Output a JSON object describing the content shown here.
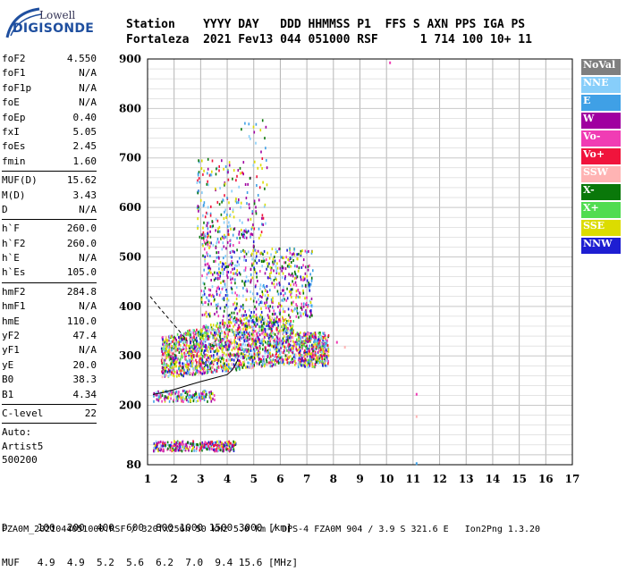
{
  "logo": {
    "line1": "Lowell",
    "line2": "DIGISONDE"
  },
  "header": {
    "labels": "Station    YYYY DAY   DDD HHMMSS P1  FFS S AXN PPS IGA PS",
    "values": "Fortaleza  2021 Fev13 044 051000 RSF      1 714 100 10+ 11"
  },
  "params": {
    "group1": [
      {
        "k": "foF2",
        "v": "4.550"
      },
      {
        "k": "foF1",
        "v": "N/A"
      },
      {
        "k": "foF1p",
        "v": "N/A"
      },
      {
        "k": "foE",
        "v": "N/A"
      },
      {
        "k": "foEp",
        "v": "0.40"
      },
      {
        "k": "fxI",
        "v": "5.05"
      },
      {
        "k": "foEs",
        "v": "2.45"
      },
      {
        "k": "fmin",
        "v": "1.60"
      }
    ],
    "group2": [
      {
        "k": "MUF(D)",
        "v": "15.62"
      },
      {
        "k": "M(D)",
        "v": "3.43"
      },
      {
        "k": "D",
        "v": "N/A"
      }
    ],
    "group3": [
      {
        "k": "h`F",
        "v": "260.0"
      },
      {
        "k": "h`F2",
        "v": "260.0"
      },
      {
        "k": "h`E",
        "v": "N/A"
      },
      {
        "k": "h`Es",
        "v": "105.0"
      }
    ],
    "group4": [
      {
        "k": "hmF2",
        "v": "284.8"
      },
      {
        "k": "hmF1",
        "v": "N/A"
      },
      {
        "k": "hmE",
        "v": "110.0"
      },
      {
        "k": "yF2",
        "v": "47.4"
      },
      {
        "k": "yF1",
        "v": "N/A"
      },
      {
        "k": "yE",
        "v": "20.0"
      },
      {
        "k": "B0",
        "v": "38.3"
      },
      {
        "k": "B1",
        "v": "4.34"
      }
    ],
    "group5": [
      {
        "k": "C-level",
        "v": "22"
      }
    ],
    "auto": [
      "Auto:",
      "Artist5",
      "500200"
    ]
  },
  "legend": [
    {
      "label": "NoVal",
      "color": "#7f7f7f"
    },
    {
      "label": "NNE",
      "color": "#87cefa"
    },
    {
      "label": "E",
      "color": "#3fa0e6"
    },
    {
      "label": "W",
      "color": "#a000a0"
    },
    {
      "label": "Vo-",
      "color": "#f03cb4"
    },
    {
      "label": "Vo+",
      "color": "#f0143c"
    },
    {
      "label": "SSW",
      "color": "#ffb4b4"
    },
    {
      "label": "X-",
      "color": "#0a780a"
    },
    {
      "label": "X+",
      "color": "#50dc50"
    },
    {
      "label": "SSE",
      "color": "#dcdc00"
    },
    {
      "label": "NNW",
      "color": "#1e1ed2"
    }
  ],
  "chart_data": {
    "type": "scatter",
    "xlim": [
      1,
      17
    ],
    "ylim": [
      80,
      900
    ],
    "x_ticks": [
      "1",
      "2",
      "3",
      "4",
      "5",
      "6",
      "7",
      "8",
      "9",
      "10",
      "11",
      "12",
      "13",
      "14",
      "15",
      "16",
      "17"
    ],
    "y_ticks": [
      "80",
      "200",
      "300",
      "400",
      "500",
      "600",
      "700",
      "800",
      "900"
    ],
    "grid": true,
    "trace_solid": {
      "x": [
        1.2,
        1.6,
        2.0,
        2.5,
        3.0,
        3.5,
        4.0,
        4.2,
        4.4
      ],
      "y": [
        222,
        226,
        232,
        240,
        248,
        255,
        262,
        272,
        292
      ]
    },
    "trace_dashed": {
      "x": [
        1.1,
        1.4,
        1.8,
        2.2,
        2.5
      ],
      "y": [
        420,
        400,
        375,
        350,
        330
      ]
    },
    "clusters": [
      {
        "name": "Es-layer",
        "xrange": [
          1.2,
          4.3
        ],
        "yrange": [
          110,
          130
        ],
        "n": 320
      },
      {
        "name": "E-band",
        "xrange": [
          1.2,
          3.5
        ],
        "yrange": [
          210,
          232
        ],
        "n": 180
      },
      {
        "name": "F-layer",
        "xrange": [
          1.5,
          7.8
        ],
        "yrange": [
          255,
          380
        ],
        "n": 2200
      },
      {
        "name": "F-upper",
        "xrange": [
          3.0,
          7.2
        ],
        "yrange": [
          380,
          540
        ],
        "n": 700
      },
      {
        "name": "spread",
        "xrange": [
          2.8,
          5.5
        ],
        "yrange": [
          540,
          800
        ],
        "n": 220
      }
    ]
  },
  "bottom": {
    "d_row": "D     100  200  400  600  800 1000 1500 3000 [km]",
    "muf_row": "MUF   4.9  4.9  5.2  5.6  6.2  7.0  9.4 15.6 [MHz]"
  },
  "footer": "FZA0M_2021044051000.RSF / 320fx256h 50 kHz 5.0 km / DPS-4 FZA0M 904 / 3.9 S 321.6 E   Ion2Png 1.3.20"
}
